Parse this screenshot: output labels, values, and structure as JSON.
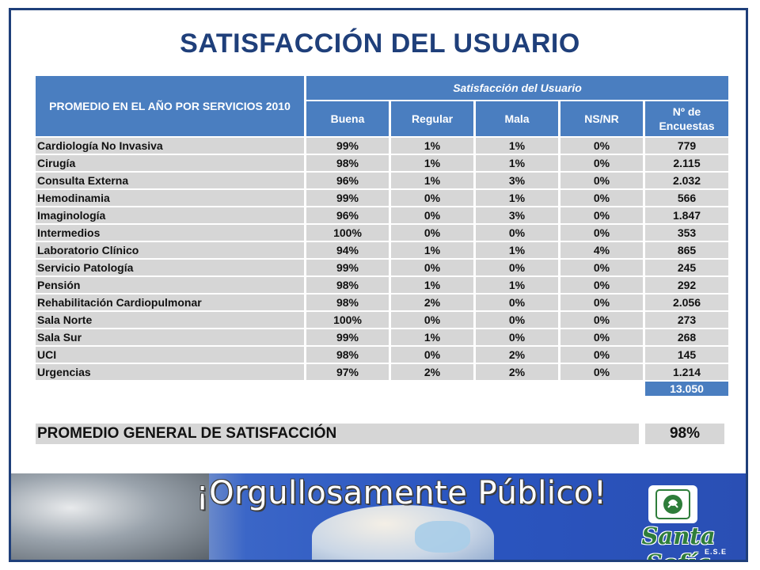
{
  "title": "SATISFACCIÓN DEL USUARIO",
  "table": {
    "header_main": "PROMEDIO EN EL AÑO POR SERVICIOS 2010",
    "header_span": "Satisfacción del Usuario",
    "columns": [
      "Buena",
      "Regular",
      "Mala",
      "NS/NR",
      "Nº  de Encuestas"
    ],
    "rows": [
      [
        "Cardiología No Invasiva",
        "99%",
        "1%",
        "1%",
        "0%",
        "779"
      ],
      [
        "Cirugía",
        "98%",
        "1%",
        "1%",
        "0%",
        "2.115"
      ],
      [
        "Consulta Externa",
        "96%",
        "1%",
        "3%",
        "0%",
        "2.032"
      ],
      [
        "Hemodinamia",
        "99%",
        "0%",
        "1%",
        "0%",
        "566"
      ],
      [
        "Imaginología",
        "96%",
        "0%",
        "3%",
        "0%",
        "1.847"
      ],
      [
        "Intermedios",
        "100%",
        "0%",
        "0%",
        "0%",
        "353"
      ],
      [
        "Laboratorio Clínico",
        "94%",
        "1%",
        "1%",
        "4%",
        "865"
      ],
      [
        "Servicio Patología",
        "99%",
        "0%",
        "0%",
        "0%",
        "245"
      ],
      [
        "Pensión",
        "98%",
        "1%",
        "1%",
        "0%",
        "292"
      ],
      [
        "Rehabilitación Cardiopulmonar",
        "98%",
        "2%",
        "0%",
        "0%",
        "2.056"
      ],
      [
        "Sala Norte",
        "100%",
        "0%",
        "0%",
        "0%",
        "273"
      ],
      [
        "Sala Sur",
        "99%",
        "1%",
        "0%",
        "0%",
        "268"
      ],
      [
        "UCI",
        "98%",
        "0%",
        "2%",
        "0%",
        "145"
      ],
      [
        "Urgencias",
        "97%",
        "2%",
        "2%",
        "0%",
        "1.214"
      ]
    ],
    "total_encuestas": "13.050"
  },
  "summary": {
    "label": "PROMEDIO GENERAL DE SATISFACCIÓN",
    "value": "98%"
  },
  "banner": {
    "slogan": "¡Orgullosamente Público!",
    "logo_name": "Santa Sofía",
    "logo_sub": "E.S.E"
  },
  "colors": {
    "title": "#1f3f7a",
    "header_fill": "#4a7ec0",
    "cell_fill": "#d6d6d6"
  }
}
